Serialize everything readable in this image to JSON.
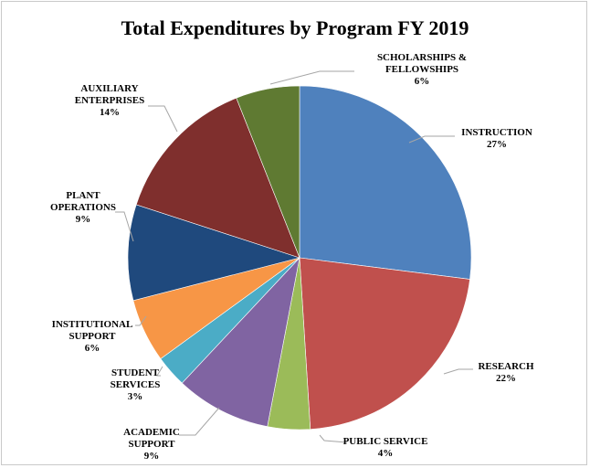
{
  "chart_data": {
    "type": "pie",
    "title": "Total Expenditures by Program FY 2019",
    "slices": [
      {
        "label": [
          "INSTRUCTION"
        ],
        "pct_label": "27%",
        "value": 27,
        "color": "#4f81bd"
      },
      {
        "label": [
          "RESEARCH"
        ],
        "pct_label": "22%",
        "value": 22,
        "color": "#c0504d"
      },
      {
        "label": [
          "PUBLIC SERVICE"
        ],
        "pct_label": "4%",
        "value": 4,
        "color": "#9bbb59"
      },
      {
        "label": [
          "ACADEMIC",
          "SUPPORT"
        ],
        "pct_label": "9%",
        "value": 9,
        "color": "#8064a2"
      },
      {
        "label": [
          "STUDENT",
          "SERVICES"
        ],
        "pct_label": "3%",
        "value": 3,
        "color": "#4bacc6"
      },
      {
        "label": [
          "INSTITUTIONAL",
          "SUPPORT"
        ],
        "pct_label": "6%",
        "value": 6,
        "color": "#f79646"
      },
      {
        "label": [
          "PLANT",
          "OPERATIONS"
        ],
        "pct_label": "9%",
        "value": 9,
        "color": "#1f497d"
      },
      {
        "label": [
          "AUXILIARY",
          "ENTERPRISES"
        ],
        "pct_label": "14%",
        "value": 14,
        "color": "#7f2f2d"
      },
      {
        "label": [
          "SCHOLARSHIPS &",
          "FELLOWSHIPS"
        ],
        "pct_label": "6%",
        "value": 6,
        "color": "#5f7a32"
      }
    ],
    "legend": "none",
    "data_labels": "outside-with-leader-lines"
  }
}
